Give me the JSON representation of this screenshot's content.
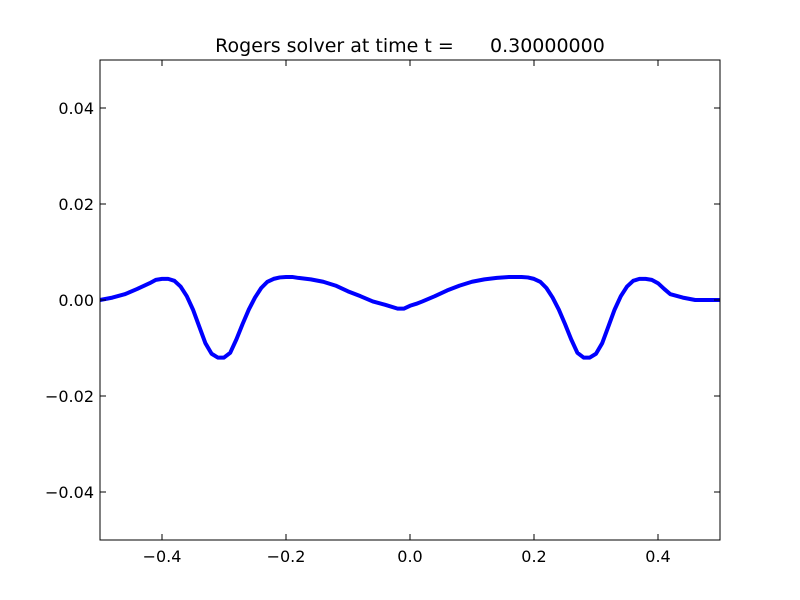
{
  "chart_data": {
    "type": "line",
    "title": "Rogers solver at time t =      0.30000000",
    "xlabel": "",
    "ylabel": "",
    "xlim": [
      -0.5,
      0.5
    ],
    "ylim": [
      -0.05,
      0.05
    ],
    "x_ticks": [
      -0.4,
      -0.2,
      0.0,
      0.2,
      0.4
    ],
    "x_tick_labels": [
      "−0.4",
      "−0.2",
      "0.0",
      "0.2",
      "0.4"
    ],
    "y_ticks": [
      0.04,
      0.02,
      0.0,
      -0.02,
      -0.04
    ],
    "y_tick_labels": [
      "0.04",
      "0.02",
      "0.00",
      "−0.02",
      "−0.04"
    ],
    "grid": false,
    "legend": false,
    "series": [
      {
        "color": "#0000ff",
        "x": [
          -0.5,
          -0.48,
          -0.46,
          -0.44,
          -0.42,
          -0.41,
          -0.4,
          -0.39,
          -0.38,
          -0.37,
          -0.36,
          -0.35,
          -0.34,
          -0.33,
          -0.32,
          -0.31,
          -0.3,
          -0.29,
          -0.28,
          -0.27,
          -0.26,
          -0.25,
          -0.24,
          -0.23,
          -0.22,
          -0.21,
          -0.2,
          -0.19,
          -0.18,
          -0.16,
          -0.14,
          -0.12,
          -0.1,
          -0.08,
          -0.06,
          -0.04,
          -0.02,
          -0.01,
          0.0,
          0.01,
          0.02,
          0.04,
          0.06,
          0.08,
          0.1,
          0.12,
          0.14,
          0.16,
          0.18,
          0.19,
          0.2,
          0.21,
          0.22,
          0.23,
          0.24,
          0.25,
          0.26,
          0.27,
          0.28,
          0.29,
          0.3,
          0.31,
          0.32,
          0.33,
          0.34,
          0.35,
          0.36,
          0.37,
          0.38,
          0.39,
          0.4,
          0.41,
          0.42,
          0.44,
          0.46,
          0.48,
          0.5
        ],
        "y": [
          0.0,
          0.0005,
          0.0012,
          0.0023,
          0.0035,
          0.0042,
          0.0044,
          0.0044,
          0.004,
          0.0028,
          0.0008,
          -0.002,
          -0.0055,
          -0.009,
          -0.0112,
          -0.012,
          -0.012,
          -0.011,
          -0.0082,
          -0.005,
          -0.002,
          0.0005,
          0.0025,
          0.0038,
          0.0044,
          0.0047,
          0.0048,
          0.0048,
          0.0046,
          0.0043,
          0.0038,
          0.003,
          0.0018,
          0.0008,
          -0.0003,
          -0.001,
          -0.0018,
          -0.0018,
          -0.0012,
          -0.0008,
          -0.0003,
          0.0008,
          0.002,
          0.003,
          0.0038,
          0.0043,
          0.0046,
          0.0048,
          0.0048,
          0.0047,
          0.0044,
          0.0038,
          0.0025,
          0.0005,
          -0.002,
          -0.005,
          -0.0082,
          -0.011,
          -0.012,
          -0.012,
          -0.0112,
          -0.009,
          -0.0055,
          -0.002,
          0.0008,
          0.0028,
          0.004,
          0.0044,
          0.0044,
          0.0042,
          0.0035,
          0.0023,
          0.0012,
          0.0005,
          0.0,
          0.0,
          0.0
        ]
      }
    ]
  }
}
